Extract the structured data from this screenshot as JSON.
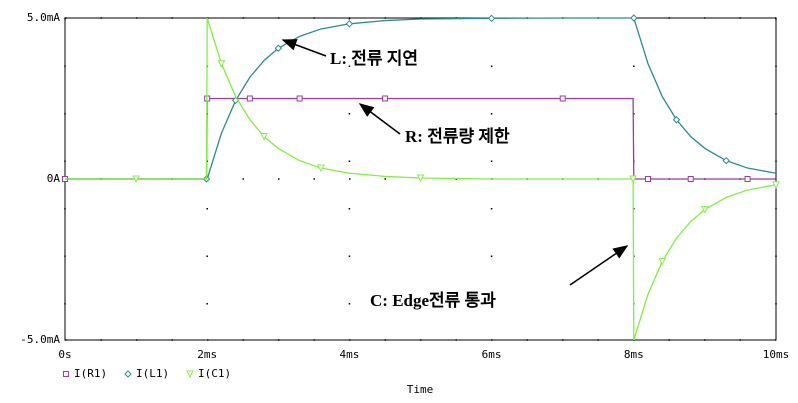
{
  "chart_data": {
    "type": "line",
    "x_label": "Time",
    "x": [
      0,
      1,
      1.99,
      2,
      2.2,
      2.4,
      2.6,
      2.8,
      3,
      3.3,
      3.6,
      4,
      4.5,
      5,
      6,
      7,
      7.99,
      8,
      8.2,
      8.4,
      8.6,
      8.8,
      9,
      9.3,
      9.6,
      10
    ],
    "series": [
      {
        "name": "I(R1)",
        "color": "#9b3d9b",
        "marker": "square",
        "values": [
          0,
          0,
          0,
          2.5,
          2.5,
          2.5,
          2.5,
          2.5,
          2.5,
          2.5,
          2.5,
          2.5,
          2.5,
          2.5,
          2.5,
          2.5,
          2.5,
          0,
          0,
          0,
          0,
          0,
          0,
          0,
          0,
          0
        ]
      },
      {
        "name": "I(L1)",
        "color": "#2a8c8c",
        "marker": "diamond",
        "values": [
          0,
          0,
          0,
          0,
          1.42,
          2.44,
          3.16,
          3.68,
          4.06,
          4.43,
          4.66,
          4.82,
          4.92,
          4.97,
          4.99,
          5,
          5,
          5,
          3.58,
          2.56,
          1.84,
          1.32,
          0.95,
          0.57,
          0.34,
          0.18
        ]
      },
      {
        "name": "I(C1)",
        "color": "#80f040",
        "marker": "triangle",
        "values": [
          0,
          0,
          0,
          5,
          3.58,
          2.56,
          1.84,
          1.32,
          0.95,
          0.57,
          0.34,
          0.18,
          0.08,
          0.03,
          0,
          0,
          0,
          -5,
          -3.58,
          -2.56,
          -1.84,
          -1.32,
          -0.95,
          -0.57,
          -0.34,
          -0.18
        ]
      }
    ],
    "xlim": [
      0,
      10
    ],
    "xticks": [
      {
        "value": 0,
        "label": "0s"
      },
      {
        "value": 2,
        "label": "2ms"
      },
      {
        "value": 4,
        "label": "4ms"
      },
      {
        "value": 6,
        "label": "6ms"
      },
      {
        "value": 8,
        "label": "8ms"
      },
      {
        "value": 10,
        "label": "10ms"
      }
    ],
    "ylim": [
      -5,
      5
    ],
    "yticks": [
      {
        "value": -5,
        "label": "-5.0mA"
      },
      {
        "value": 0,
        "label": "0A"
      },
      {
        "value": 5,
        "label": "5.0mA"
      }
    ],
    "grid": true,
    "annotations": [
      "L: 전류 지연",
      "R: 전류량 제한",
      "C: Edge전류 통과"
    ]
  }
}
